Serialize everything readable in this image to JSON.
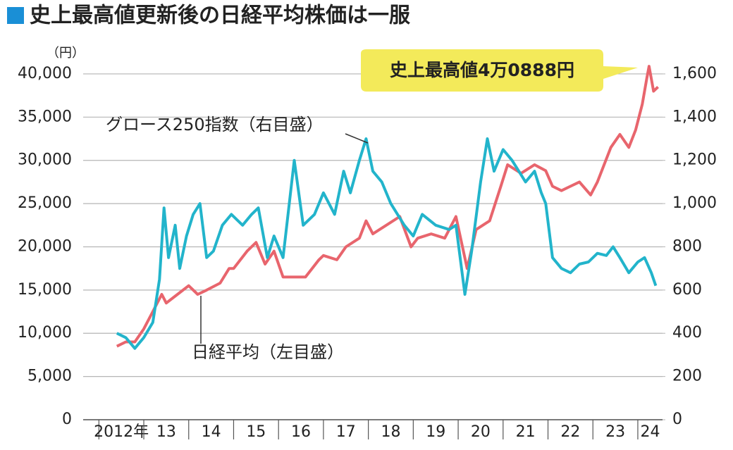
{
  "chart_data": {
    "type": "line",
    "title": "史上最高値更新後の日経平均株価は一服",
    "y_unit": "（円）",
    "annotation": "史上最高値4万0888円",
    "xlim": [
      2011.65,
      2024.55
    ],
    "xticks": [
      {
        "value": 2012,
        "label": "2012年"
      },
      {
        "value": 2013,
        "label": "13"
      },
      {
        "value": 2014,
        "label": "14"
      },
      {
        "value": 2015,
        "label": "15"
      },
      {
        "value": 2016,
        "label": "16"
      },
      {
        "value": 2017,
        "label": "17"
      },
      {
        "value": 2018,
        "label": "18"
      },
      {
        "value": 2019,
        "label": "19"
      },
      {
        "value": 2020,
        "label": "20"
      },
      {
        "value": 2021,
        "label": "21"
      },
      {
        "value": 2022,
        "label": "22"
      },
      {
        "value": 2023,
        "label": "23"
      },
      {
        "value": 2024,
        "label": "24"
      }
    ],
    "ylim": [
      0,
      42000
    ],
    "yticks": [
      0,
      {
        "value": 5000,
        "label": "5,000"
      },
      {
        "value": 10000,
        "label": "10,000"
      },
      {
        "value": 15000,
        "label": "15,000"
      },
      {
        "value": 20000,
        "label": "20,000"
      },
      {
        "value": 25000,
        "label": "25,000"
      },
      {
        "value": 30000,
        "label": "30,000"
      },
      {
        "value": 35000,
        "label": "35,000"
      },
      {
        "value": 40000,
        "label": "40,000"
      }
    ],
    "y2lim": [
      0,
      1680
    ],
    "y2ticks": [
      0,
      200,
      400,
      600,
      800,
      {
        "value": 1000,
        "label": "1,000"
      },
      {
        "value": 1200,
        "label": "1,200"
      },
      {
        "value": 1400,
        "label": "1,400"
      },
      {
        "value": 1600,
        "label": "1,600"
      }
    ],
    "grid": true,
    "series": [
      {
        "name": "日経平均（左目盛）",
        "color": "#e8656d",
        "x": [
          2012.4,
          2012.6,
          2012.8,
          2013.0,
          2013.2,
          2013.4,
          2013.5,
          2013.75,
          2014.0,
          2014.2,
          2014.4,
          2014.7,
          2014.9,
          2015.0,
          2015.3,
          2015.5,
          2015.7,
          2015.9,
          2016.1,
          2016.4,
          2016.6,
          2016.9,
          2017.0,
          2017.3,
          2017.5,
          2017.8,
          2017.95,
          2018.1,
          2018.4,
          2018.7,
          2018.95,
          2019.1,
          2019.4,
          2019.7,
          2019.95,
          2020.2,
          2020.4,
          2020.7,
          2020.95,
          2021.1,
          2021.4,
          2021.7,
          2021.95,
          2022.1,
          2022.3,
          2022.5,
          2022.7,
          2022.95,
          2023.1,
          2023.4,
          2023.6,
          2023.8,
          2023.95,
          2024.1,
          2024.2,
          2024.25,
          2024.35,
          2024.45
        ],
        "values": [
          8500,
          9000,
          9000,
          10500,
          12500,
          14500,
          13500,
          14500,
          15500,
          14500,
          15000,
          15800,
          17500,
          17500,
          19500,
          20500,
          18000,
          19500,
          16500,
          16500,
          16500,
          18500,
          19000,
          18500,
          20000,
          21000,
          23000,
          21500,
          22500,
          23500,
          20000,
          21000,
          21500,
          21000,
          23500,
          17500,
          22000,
          23000,
          27000,
          29500,
          28500,
          29500,
          28800,
          27000,
          26500,
          27000,
          27500,
          26000,
          27500,
          31500,
          33000,
          31500,
          33500,
          36500,
          39500,
          40888,
          38000,
          38500
        ]
      },
      {
        "name": "グロース250指数（右目盛）",
        "color": "#22b4cb",
        "axis": "y2",
        "x": [
          2012.4,
          2012.6,
          2012.8,
          2013.0,
          2013.2,
          2013.35,
          2013.45,
          2013.55,
          2013.7,
          2013.8,
          2013.95,
          2014.1,
          2014.25,
          2014.4,
          2014.55,
          2014.75,
          2014.95,
          2015.2,
          2015.4,
          2015.55,
          2015.75,
          2015.9,
          2016.1,
          2016.35,
          2016.55,
          2016.8,
          2017.0,
          2017.25,
          2017.45,
          2017.6,
          2017.8,
          2017.95,
          2018.1,
          2018.3,
          2018.5,
          2018.8,
          2019.0,
          2019.2,
          2019.5,
          2019.8,
          2019.95,
          2020.15,
          2020.3,
          2020.5,
          2020.65,
          2020.8,
          2021.0,
          2021.2,
          2021.5,
          2021.7,
          2021.85,
          2021.95,
          2022.1,
          2022.3,
          2022.5,
          2022.7,
          2022.9,
          2023.1,
          2023.3,
          2023.45,
          2023.6,
          2023.8,
          2024.0,
          2024.15,
          2024.3,
          2024.4
        ],
        "values": [
          400,
          380,
          330,
          380,
          450,
          650,
          980,
          750,
          900,
          700,
          850,
          950,
          1000,
          750,
          780,
          900,
          950,
          900,
          950,
          980,
          750,
          850,
          750,
          1200,
          900,
          950,
          1050,
          950,
          1150,
          1050,
          1200,
          1300,
          1150,
          1100,
          1000,
          900,
          850,
          950,
          900,
          880,
          900,
          580,
          780,
          1100,
          1300,
          1150,
          1250,
          1200,
          1100,
          1150,
          1050,
          1000,
          750,
          700,
          680,
          720,
          730,
          770,
          760,
          800,
          750,
          680,
          730,
          750,
          680,
          620
        ]
      }
    ]
  }
}
